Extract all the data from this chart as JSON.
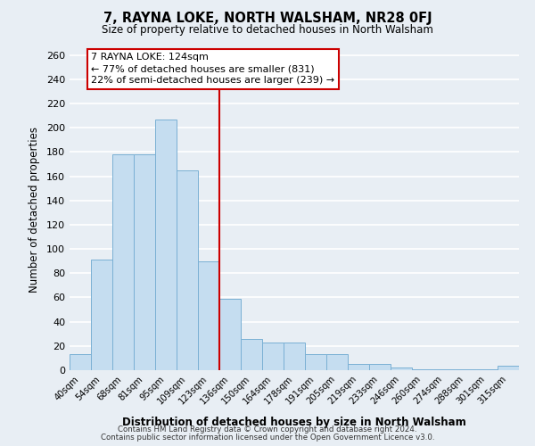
{
  "title": "7, RAYNA LOKE, NORTH WALSHAM, NR28 0FJ",
  "subtitle": "Size of property relative to detached houses in North Walsham",
  "xlabel": "Distribution of detached houses by size in North Walsham",
  "ylabel": "Number of detached properties",
  "bar_color": "#c5ddf0",
  "bar_edge_color": "#7ab0d4",
  "categories": [
    "40sqm",
    "54sqm",
    "68sqm",
    "81sqm",
    "95sqm",
    "109sqm",
    "123sqm",
    "136sqm",
    "150sqm",
    "164sqm",
    "178sqm",
    "191sqm",
    "205sqm",
    "219sqm",
    "233sqm",
    "246sqm",
    "260sqm",
    "274sqm",
    "288sqm",
    "301sqm",
    "315sqm"
  ],
  "values": [
    13,
    91,
    178,
    178,
    207,
    165,
    90,
    59,
    26,
    23,
    23,
    13,
    13,
    5,
    5,
    2,
    1,
    1,
    1,
    1,
    4
  ],
  "ylim": [
    0,
    265
  ],
  "yticks": [
    0,
    20,
    40,
    60,
    80,
    100,
    120,
    140,
    160,
    180,
    200,
    220,
    240,
    260
  ],
  "property_line_x": 6.5,
  "property_line_label": "7 RAYNA LOKE: 124sqm",
  "annotation_line1": "← 77% of detached houses are smaller (831)",
  "annotation_line2": "22% of semi-detached houses are larger (239) →",
  "annotation_box_color": "#ffffff",
  "annotation_box_edge": "#cc0000",
  "footer_line1": "Contains HM Land Registry data © Crown copyright and database right 2024.",
  "footer_line2": "Contains public sector information licensed under the Open Government Licence v3.0.",
  "background_color": "#e8eef4",
  "grid_color": "#ffffff"
}
